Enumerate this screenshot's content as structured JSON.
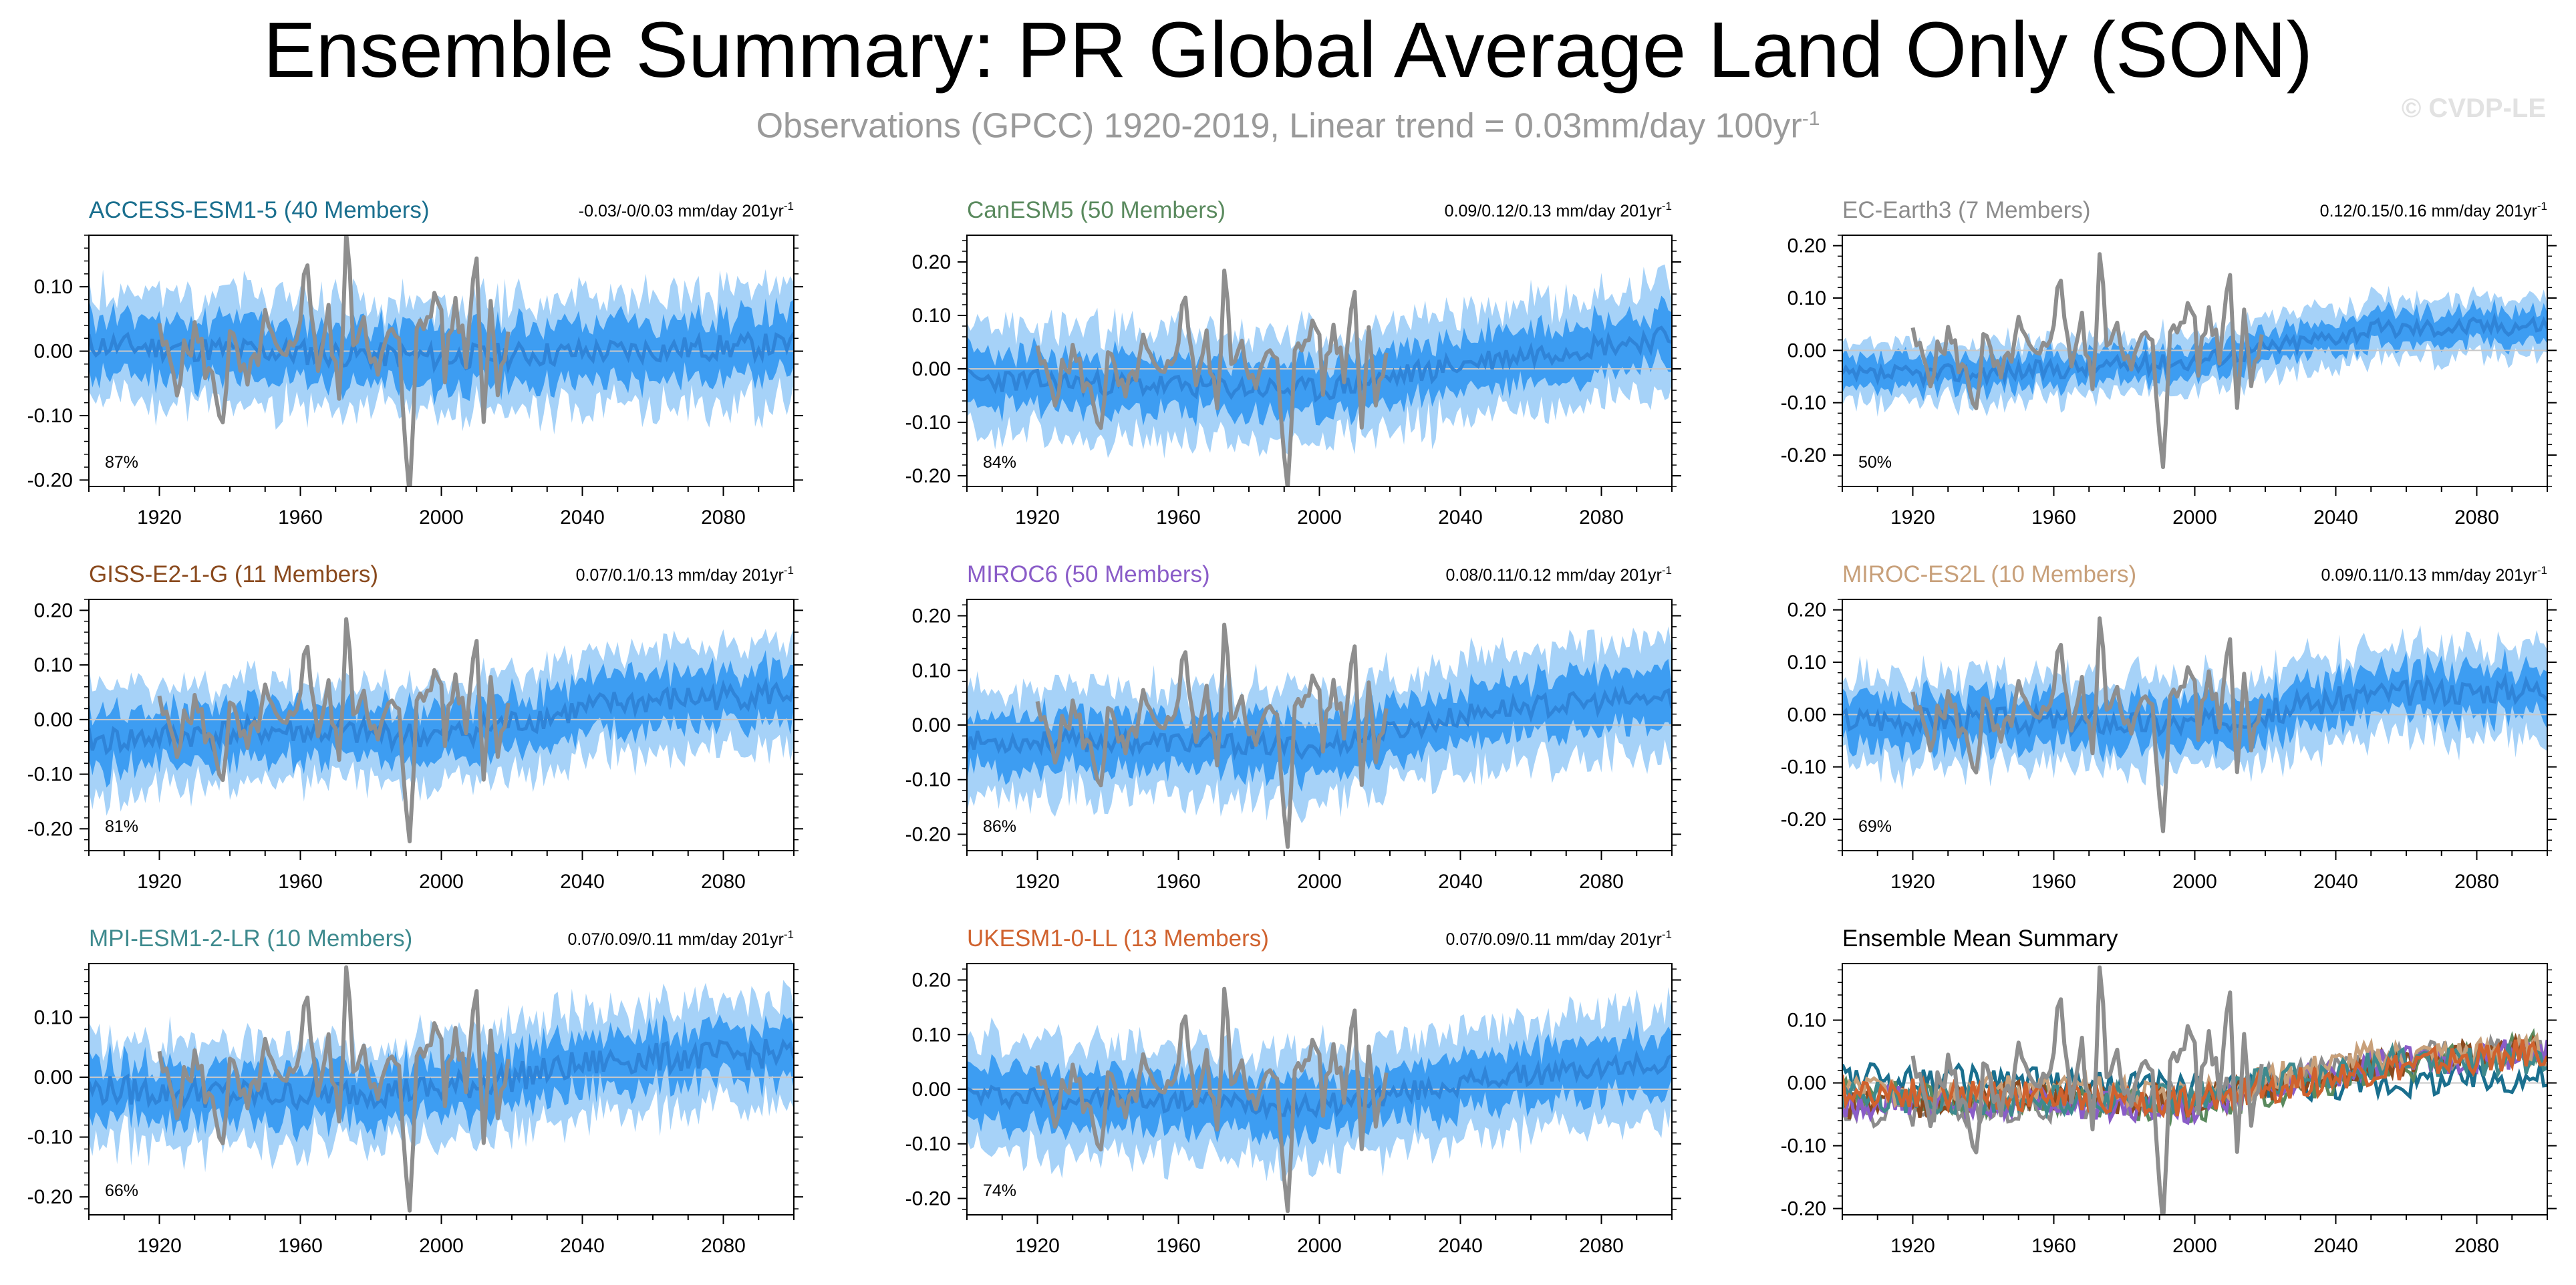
{
  "header": {
    "title": "Ensemble Summary: PR Global Average Land Only (SON)",
    "subtitle": "Observations (GPCC) 1920-2019, Linear trend = 0.03mm/day 100yr",
    "subtitle_sup": "-1",
    "credit": "© CVDP-LE"
  },
  "colors": {
    "outer_band": "#a6d2f8",
    "inner_band": "#3d9df2",
    "ensemble_mean": "#2f84d8",
    "observations": "#8e8e8e",
    "zero_line": "#c8c8c8",
    "axis": "#000000"
  },
  "chart_data": [
    {
      "type": "line",
      "panel": "ACCESS-ESM1-5",
      "title": "ACCESS-ESM1-5 (40 Members)",
      "title_color": "#1a6f8e",
      "trend": "-0.03/-0/0.03 mm/day 201yr",
      "trend_sup": "-1",
      "percent": "87%",
      "xlim": [
        1900,
        2100
      ],
      "ylim": [
        -0.21,
        0.18
      ],
      "yticks": [
        -0.2,
        -0.1,
        0.0,
        0.1
      ],
      "ytick_labels": [
        "-0.20",
        "-0.10",
        "0.00",
        "0.10"
      ],
      "xtick_labels": [
        "1920",
        "1960",
        "2000",
        "2040",
        "2080"
      ],
      "mean_trend": [
        0.01,
        0.0,
        -0.01,
        0.0,
        0.01
      ],
      "spread_outer": 0.085,
      "spread_inner": 0.045,
      "noise": 0.02,
      "seed": 11
    },
    {
      "type": "line",
      "panel": "CanESM5",
      "title": "CanESM5 (50 Members)",
      "title_color": "#5a8a5e",
      "trend": "0.09/0.12/0.13 mm/day 201yr",
      "trend_sup": "-1",
      "percent": "84%",
      "xlim": [
        1900,
        2100
      ],
      "ylim": [
        -0.22,
        0.25
      ],
      "yticks": [
        -0.2,
        -0.1,
        0.0,
        0.1,
        0.2
      ],
      "ytick_labels": [
        "-0.20",
        "-0.10",
        "0.00",
        "0.10",
        "0.20"
      ],
      "xtick_labels": [
        "1920",
        "1960",
        "2000",
        "2040",
        "2080"
      ],
      "mean_trend": [
        -0.02,
        -0.03,
        -0.04,
        0.02,
        0.06
      ],
      "spread_outer": 0.1,
      "spread_inner": 0.05,
      "noise": 0.022,
      "seed": 23
    },
    {
      "type": "line",
      "panel": "EC-Earth3",
      "title": "EC-Earth3 (7 Members)",
      "title_color": "#8c8c8c",
      "trend": "0.12/0.15/0.16 mm/day 201yr",
      "trend_sup": "-1",
      "percent": "50%",
      "xlim": [
        1900,
        2100
      ],
      "ylim": [
        -0.26,
        0.22
      ],
      "yticks": [
        -0.2,
        -0.1,
        0.0,
        0.1,
        0.2
      ],
      "ytick_labels": [
        "-0.20",
        "-0.10",
        "0.00",
        "0.10",
        "0.20"
      ],
      "xtick_labels": [
        "1920",
        "1960",
        "2000",
        "2040",
        "2080"
      ],
      "mean_trend": [
        -0.05,
        -0.04,
        -0.02,
        0.04,
        0.05
      ],
      "spread_outer": 0.055,
      "spread_inner": 0.03,
      "noise": 0.018,
      "seed": 37
    },
    {
      "type": "line",
      "panel": "GISS-E2-1-G",
      "title": "GISS-E2-1-G (11 Members)",
      "title_color": "#8a4a1e",
      "trend": "0.07/0.1/0.13 mm/day 201yr",
      "trend_sup": "-1",
      "percent": "81%",
      "xlim": [
        1900,
        2100
      ],
      "ylim": [
        -0.24,
        0.22
      ],
      "yticks": [
        -0.2,
        -0.1,
        0.0,
        0.1,
        0.2
      ],
      "ytick_labels": [
        "-0.20",
        "-0.10",
        "0.00",
        "0.10",
        "0.20"
      ],
      "xtick_labels": [
        "1920",
        "1960",
        "2000",
        "2040",
        "2080"
      ],
      "mean_trend": [
        -0.04,
        -0.02,
        -0.03,
        0.03,
        0.05
      ],
      "spread_outer": 0.09,
      "spread_inner": 0.05,
      "noise": 0.025,
      "seed": 41
    },
    {
      "type": "line",
      "panel": "MIROC6",
      "title": "MIROC6 (50 Members)",
      "title_color": "#8a5cc8",
      "trend": "0.08/0.11/0.12 mm/day 201yr",
      "trend_sup": "-1",
      "percent": "86%",
      "xlim": [
        1900,
        2100
      ],
      "ylim": [
        -0.23,
        0.23
      ],
      "yticks": [
        -0.2,
        -0.1,
        0.0,
        0.1,
        0.2
      ],
      "ytick_labels": [
        "-0.20",
        "-0.10",
        "0.00",
        "0.10",
        "0.20"
      ],
      "xtick_labels": [
        "1920",
        "1960",
        "2000",
        "2040",
        "2080"
      ],
      "mean_trend": [
        -0.03,
        -0.03,
        -0.04,
        0.03,
        0.05
      ],
      "spread_outer": 0.1,
      "spread_inner": 0.05,
      "noise": 0.02,
      "seed": 53
    },
    {
      "type": "line",
      "panel": "MIROC-ES2L",
      "title": "MIROC-ES2L (10 Members)",
      "title_color": "#c8a07a",
      "trend": "0.09/0.11/0.13 mm/day 201yr",
      "trend_sup": "-1",
      "percent": "69%",
      "xlim": [
        1900,
        2100
      ],
      "ylim": [
        -0.26,
        0.22
      ],
      "yticks": [
        -0.2,
        -0.1,
        0.0,
        0.1,
        0.2
      ],
      "ytick_labels": [
        "-0.20",
        "-0.10",
        "0.00",
        "0.10",
        "0.20"
      ],
      "xtick_labels": [
        "1920",
        "1960",
        "2000",
        "2040",
        "2080"
      ],
      "mean_trend": [
        -0.01,
        -0.01,
        -0.02,
        0.04,
        0.05
      ],
      "spread_outer": 0.085,
      "spread_inner": 0.045,
      "noise": 0.025,
      "seed": 67
    },
    {
      "type": "line",
      "panel": "MPI-ESM1-2-LR",
      "title": "MPI-ESM1-2-LR (10 Members)",
      "title_color": "#3e8a8e",
      "trend": "0.07/0.09/0.11 mm/day 201yr",
      "trend_sup": "-1",
      "percent": "66%",
      "xlim": [
        1900,
        2100
      ],
      "ylim": [
        -0.23,
        0.19
      ],
      "yticks": [
        -0.2,
        -0.1,
        0.0,
        0.1
      ],
      "ytick_labels": [
        "-0.20",
        "-0.10",
        "0.00",
        "0.10"
      ],
      "xtick_labels": [
        "1920",
        "1960",
        "2000",
        "2040",
        "2080"
      ],
      "mean_trend": [
        -0.02,
        -0.03,
        -0.02,
        0.03,
        0.04
      ],
      "spread_outer": 0.085,
      "spread_inner": 0.045,
      "noise": 0.025,
      "seed": 79
    },
    {
      "type": "line",
      "panel": "UKESM1-0-LL",
      "title": "UKESM1-0-LL (13 Members)",
      "title_color": "#d0622e",
      "trend": "0.07/0.09/0.11 mm/day 201yr",
      "trend_sup": "-1",
      "percent": "74%",
      "xlim": [
        1900,
        2100
      ],
      "ylim": [
        -0.23,
        0.23
      ],
      "yticks": [
        -0.2,
        -0.1,
        0.0,
        0.1,
        0.2
      ],
      "ytick_labels": [
        "-0.20",
        "-0.10",
        "0.00",
        "0.10",
        "0.20"
      ],
      "xtick_labels": [
        "1920",
        "1960",
        "2000",
        "2040",
        "2080"
      ],
      "mean_trend": [
        -0.01,
        -0.02,
        -0.03,
        0.02,
        0.05
      ],
      "spread_outer": 0.1,
      "spread_inner": 0.05,
      "noise": 0.02,
      "seed": 97
    },
    {
      "type": "line",
      "panel": "Ensemble Mean Summary",
      "title": "Ensemble Mean Summary",
      "title_color": "#000000",
      "trend": "",
      "trend_sup": "",
      "percent": "",
      "xlim": [
        1900,
        2100
      ],
      "ylim": [
        -0.21,
        0.19
      ],
      "yticks": [
        -0.2,
        -0.1,
        0.0,
        0.1
      ],
      "ytick_labels": [
        "-0.20",
        "-0.10",
        "0.00",
        "0.10"
      ],
      "xtick_labels": [
        "1920",
        "1960",
        "2000",
        "2040",
        "2080"
      ],
      "summary_series": [
        {
          "name": "ACCESS-ESM1-5",
          "color": "#1a6f8e",
          "mean_trend": [
            0.01,
            0.0,
            -0.01,
            0.0,
            0.01
          ]
        },
        {
          "name": "CanESM5",
          "color": "#5a8a5e",
          "mean_trend": [
            -0.02,
            -0.03,
            -0.04,
            0.02,
            0.06
          ]
        },
        {
          "name": "EC-Earth3",
          "color": "#8c8c8c",
          "mean_trend": [
            -0.05,
            -0.04,
            -0.02,
            0.04,
            0.05
          ]
        },
        {
          "name": "GISS-E2-1-G",
          "color": "#8a4a1e",
          "mean_trend": [
            -0.04,
            -0.02,
            -0.03,
            0.03,
            0.05
          ]
        },
        {
          "name": "MIROC6",
          "color": "#8a5cc8",
          "mean_trend": [
            -0.03,
            -0.03,
            -0.04,
            0.03,
            0.05
          ]
        },
        {
          "name": "MIROC-ES2L",
          "color": "#c8a07a",
          "mean_trend": [
            -0.01,
            -0.01,
            -0.02,
            0.04,
            0.05
          ]
        },
        {
          "name": "MPI-ESM1-2-LR",
          "color": "#3e8a8e",
          "mean_trend": [
            -0.02,
            -0.03,
            -0.02,
            0.03,
            0.04
          ]
        },
        {
          "name": "UKESM1-0-LL",
          "color": "#d0622e",
          "mean_trend": [
            -0.01,
            -0.02,
            -0.03,
            0.02,
            0.05
          ]
        }
      ]
    }
  ],
  "observations": {
    "name": "GPCC",
    "years": [
      1920,
      2019
    ],
    "anomaly_points": [
      [
        1920,
        0.02
      ],
      [
        1925,
        -0.04
      ],
      [
        1930,
        0.03
      ],
      [
        1935,
        -0.05
      ],
      [
        1938,
        -0.1
      ],
      [
        1940,
        0.02
      ],
      [
        1945,
        -0.06
      ],
      [
        1950,
        0.04
      ],
      [
        1955,
        -0.03
      ],
      [
        1958,
        0.01
      ],
      [
        1962,
        0.13
      ],
      [
        1965,
        -0.02
      ],
      [
        1968,
        0.05
      ],
      [
        1971,
        -0.08
      ],
      [
        1973,
        0.18
      ],
      [
        1975,
        0.02
      ],
      [
        1978,
        0.06
      ],
      [
        1982,
        -0.05
      ],
      [
        1985,
        0.03
      ],
      [
        1988,
        0.0
      ],
      [
        1990,
        -0.15
      ],
      [
        1991,
        -0.2
      ],
      [
        1993,
        0.02
      ],
      [
        1996,
        0.05
      ],
      [
        1999,
        0.1
      ],
      [
        2001,
        -0.03
      ],
      [
        2004,
        0.08
      ],
      [
        2007,
        0.0
      ],
      [
        2010,
        0.16
      ],
      [
        2012,
        -0.1
      ],
      [
        2014,
        0.07
      ],
      [
        2016,
        -0.04
      ],
      [
        2019,
        0.03
      ]
    ]
  }
}
